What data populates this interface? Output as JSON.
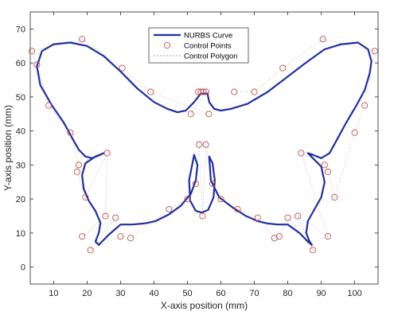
{
  "chart_data": {
    "type": "line",
    "xlabel": "X-axis position (mm)",
    "ylabel": "Y-axis position (mm)",
    "xlim": [
      3,
      107
    ],
    "ylim": [
      -5,
      75
    ],
    "xticks": [
      10,
      20,
      30,
      40,
      50,
      60,
      70,
      80,
      90,
      100
    ],
    "yticks": [
      0,
      10,
      20,
      30,
      40,
      50,
      60,
      70
    ],
    "grid": false,
    "legend_position": "top-center",
    "colors": {
      "curve": "#1f2ea6",
      "points": "#c0504d",
      "polygon": "#8c8c8c"
    },
    "series": [
      {
        "name": "NURBS Curve",
        "style": "solid-line",
        "x": [
          54.0,
          52.0,
          49.5,
          47.0,
          44.0,
          40.0,
          35.0,
          30.0,
          25.0,
          20.0,
          15.0,
          10.0,
          6.5,
          5.0,
          6.0,
          9.5,
          13.0,
          15.5,
          17.5,
          19.5,
          21.5,
          23.5,
          25.0,
          22.5,
          19.5,
          18.5,
          19.0,
          20.5,
          22.5,
          24.0,
          23.5,
          22.5,
          23.5,
          26.5,
          30.0,
          33.5,
          37.0,
          40.5,
          44.5,
          48.0,
          51.0,
          52.5,
          53.0,
          52.0,
          50.5,
          50.8,
          52.5,
          54.3,
          56.2,
          57.8,
          58.2,
          57.5,
          56.5,
          57.0,
          59.5,
          63.5,
          67.5,
          71.0,
          74.0,
          77.0,
          80.0,
          83.5,
          86.0,
          87.2,
          86.5,
          85.5,
          86.0,
          88.0,
          90.0,
          91.0,
          90.0,
          87.5,
          86.0,
          87.5,
          90.0,
          92.5,
          95.0,
          97.5,
          100.5,
          103.0,
          104.5,
          105.0,
          104.0,
          101.0,
          96.0,
          91.0,
          86.0,
          80.0,
          74.0,
          68.0,
          63.0,
          60.0,
          58.0,
          56.5,
          56.0
        ],
        "y": [
          51.0,
          48.5,
          46.0,
          45.5,
          46.5,
          48.5,
          52.5,
          57.5,
          62.0,
          65.0,
          66.0,
          65.5,
          63.5,
          59.0,
          53.5,
          47.5,
          42.5,
          38.0,
          34.5,
          32.5,
          32.0,
          32.8,
          33.5,
          32.5,
          30.5,
          27.0,
          23.0,
          19.5,
          16.5,
          13.0,
          10.0,
          7.5,
          6.5,
          9.5,
          12.5,
          12.5,
          12.8,
          13.5,
          15.5,
          18.0,
          21.5,
          25.5,
          30.0,
          33.0,
          25.5,
          19.5,
          16.5,
          16.0,
          16.8,
          20.5,
          25.5,
          30.5,
          32.5,
          25.5,
          20.5,
          17.5,
          15.0,
          13.5,
          12.8,
          12.5,
          12.5,
          10.0,
          7.5,
          6.5,
          7.5,
          10.0,
          13.5,
          17.0,
          20.5,
          25.0,
          29.5,
          32.0,
          33.5,
          33.0,
          32.0,
          33.5,
          38.0,
          42.5,
          47.5,
          52.0,
          57.0,
          60.5,
          64.0,
          66.0,
          65.5,
          64.0,
          60.5,
          56.0,
          51.5,
          48.0,
          46.5,
          46.0,
          46.5,
          48.5,
          51.0
        ]
      },
      {
        "name": "Control Points",
        "style": "circle-markers",
        "x": [
          53.2,
          54.0,
          54.8,
          55.6,
          51.0,
          56.4,
          39.0,
          30.5,
          18.5,
          3.5,
          5.0,
          8.5,
          15.0,
          17.5,
          17.0,
          19.5,
          26.0,
          25.5,
          18.5,
          28.5,
          21.0,
          30.0,
          33.0,
          44.5,
          50.0,
          52.5,
          53.5,
          54.5,
          55.5,
          57.5,
          60.0,
          65.0,
          71.0,
          76.0,
          77.5,
          80.0,
          87.5,
          83.0,
          92.0,
          84.0,
          91.0,
          92.0,
          94.0,
          100.0,
          103.0,
          106.0,
          90.5,
          78.5,
          70.0,
          64.0
        ],
        "y": [
          51.5,
          51.5,
          51.5,
          51.5,
          45.0,
          45.0,
          51.5,
          58.5,
          67.0,
          63.5,
          59.5,
          47.5,
          39.5,
          30.0,
          28.0,
          20.5,
          33.5,
          15.0,
          9.0,
          14.5,
          5.0,
          9.0,
          8.5,
          17.0,
          20.0,
          24.5,
          36.0,
          15.0,
          36.0,
          24.5,
          20.0,
          17.0,
          14.5,
          8.5,
          9.0,
          14.5,
          5.0,
          15.0,
          9.0,
          33.5,
          30.0,
          28.0,
          20.5,
          39.5,
          47.5,
          63.5,
          67.0,
          58.5,
          51.5,
          51.5
        ]
      },
      {
        "name": "Control Polygon",
        "style": "dashed-line"
      }
    ]
  }
}
